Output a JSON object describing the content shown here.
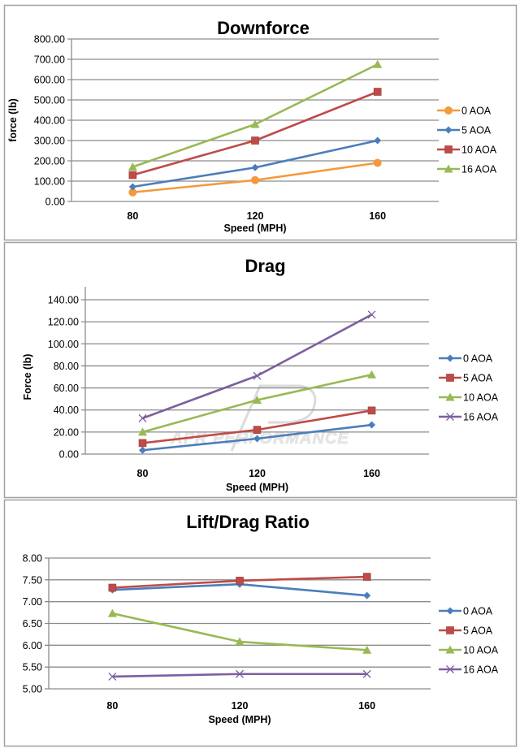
{
  "watermark": "APR PERFORMANCE",
  "colors": {
    "orange": "#F39A3D",
    "blue": "#4A7EBB",
    "red": "#BE4B48",
    "green": "#98B954",
    "purple": "#7D5FA0",
    "grid": "#8C8C8C",
    "frame": "#A0A0A0"
  },
  "chart_data": [
    {
      "type": "line",
      "title": "Downforce",
      "xlabel": "Speed (MPH)",
      "ylabel": "force (lb)",
      "categories": [
        "80",
        "120",
        "160"
      ],
      "ylim": [
        0,
        800
      ],
      "yticks": [
        "0.00",
        "100.00",
        "200.00",
        "300.00",
        "400.00",
        "500.00",
        "600.00",
        "700.00",
        "800.00"
      ],
      "grid": true,
      "legend": "right",
      "series": [
        {
          "name": "0 AOA",
          "marker": "circle",
          "color": "#F39A3D",
          "values": [
            45,
            105,
            190
          ]
        },
        {
          "name": "5 AOA",
          "marker": "diamond",
          "color": "#4A7EBB",
          "values": [
            72,
            167,
            300
          ]
        },
        {
          "name": "10 AOA",
          "marker": "square",
          "color": "#BE4B48",
          "values": [
            130,
            300,
            540
          ]
        },
        {
          "name": "16 AOA",
          "marker": "triangle",
          "color": "#98B954",
          "values": [
            170,
            380,
            675
          ]
        }
      ]
    },
    {
      "type": "line",
      "title": "Drag",
      "xlabel": "Speed (MPH)",
      "ylabel": "Force (lb)",
      "categories": [
        "80",
        "120",
        "160"
      ],
      "ylim": [
        0,
        140
      ],
      "yticks": [
        "0.00",
        "20.00",
        "40.00",
        "60.00",
        "80.00",
        "100.00",
        "120.00",
        "140.00"
      ],
      "grid": true,
      "legend": "right",
      "series": [
        {
          "name": "0 AOA",
          "marker": "diamond",
          "color": "#4A7EBB",
          "values": [
            3.5,
            14,
            26.5
          ]
        },
        {
          "name": "5 AOA",
          "marker": "square",
          "color": "#BE4B48",
          "values": [
            10,
            22,
            39.5
          ]
        },
        {
          "name": "10 AOA",
          "marker": "triangle",
          "color": "#98B954",
          "values": [
            20,
            49,
            72
          ]
        },
        {
          "name": "16 AOA",
          "marker": "x",
          "color": "#7D5FA0",
          "values": [
            32.5,
            71,
            126.5
          ]
        }
      ]
    },
    {
      "type": "line",
      "title": "Lift/Drag Ratio",
      "xlabel": "Speed (MPH)",
      "ylabel": "",
      "categories": [
        "80",
        "120",
        "160"
      ],
      "ylim": [
        5,
        8
      ],
      "yticks": [
        "5.00",
        "5.50",
        "6.00",
        "6.50",
        "7.00",
        "7.50",
        "8.00"
      ],
      "grid": true,
      "legend": "right",
      "series": [
        {
          "name": "0 AOA",
          "marker": "diamond",
          "color": "#4A7EBB",
          "values": [
            7.27,
            7.4,
            7.14
          ]
        },
        {
          "name": "5 AOA",
          "marker": "square",
          "color": "#BE4B48",
          "values": [
            7.32,
            7.48,
            7.57
          ]
        },
        {
          "name": "10 AOA",
          "marker": "triangle",
          "color": "#98B954",
          "values": [
            6.73,
            6.08,
            5.89
          ]
        },
        {
          "name": "16 AOA",
          "marker": "x",
          "color": "#7D5FA0",
          "values": [
            5.28,
            5.34,
            5.34
          ]
        }
      ]
    }
  ]
}
